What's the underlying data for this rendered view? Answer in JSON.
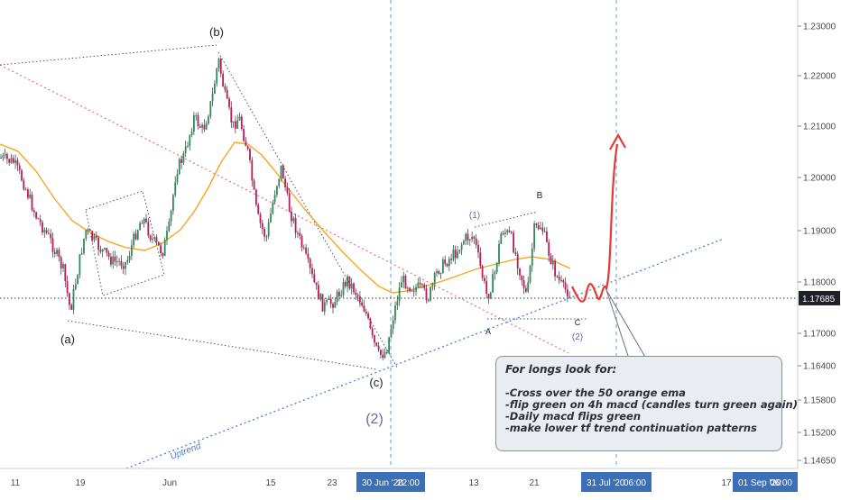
{
  "chart_data": {
    "type": "candlestick",
    "y_axis": {
      "ticks": [
        "1.23000",
        "1.22000",
        "1.21000",
        "1.20000",
        "1.19000",
        "1.18000",
        "1.17000",
        "1.16400",
        "1.15800",
        "1.15200",
        "1.14650"
      ],
      "tick_values": [
        1.23,
        1.22,
        1.21,
        1.2,
        1.19,
        1.18,
        1.17,
        1.164,
        1.158,
        1.152,
        1.1465
      ],
      "current_price": "1.17685",
      "current_value": 1.17685
    },
    "x_axis": {
      "ticks": [
        "11",
        "19",
        "Jun",
        "15",
        "23",
        "30 Jun '20",
        "22:00",
        "13",
        "21",
        "31 Jul '20",
        "06:00",
        "17",
        "01 Sep '20",
        "06:00"
      ]
    },
    "wave_labels": [
      "(b)",
      "(a)",
      "(c)",
      "(2)",
      "(1)",
      "B",
      "A",
      "C",
      "(2)"
    ],
    "trendline_label": "Uptrend",
    "colors": {
      "up_candle": "#2e8b57",
      "down_candle": "#c2185b",
      "ema": "#f5a623",
      "uptrend_line": "#4a7fcf",
      "red_dotted": "#e57373",
      "forecast": "#e53935",
      "vertical_marker": "#5aa0d8",
      "wave_count_purple": "#7b5ea7"
    }
  },
  "annotation": {
    "title": "For longs look for:",
    "lines": [
      "-Cross over the 50 orange ema",
      "-flip green on 4h macd (candles turn green again)",
      "-Daily macd flips green",
      "-make lower tf trend continuation patterns"
    ]
  }
}
